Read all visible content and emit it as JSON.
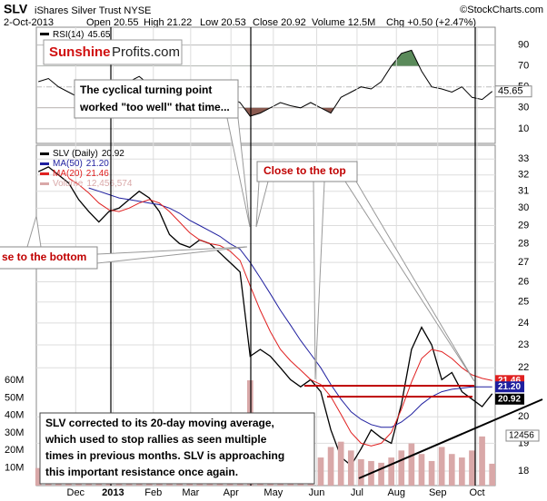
{
  "header": {
    "symbol": "SLV",
    "name": "iShares Silver Trust NYSE",
    "credit": "©StockCharts.com",
    "date": "2-Oct-2013",
    "quote": [
      "Open 20.55",
      "High 21.22",
      "Low 20.53",
      "Close 20.92",
      "Volume 12.5M",
      "Chg +0.50 (+2.47%)"
    ]
  },
  "logo": [
    "Sunshine",
    "Profits.com"
  ],
  "annotations": {
    "turning_point": [
      "The cyclical turning point",
      "worked \"too well\" that time..."
    ],
    "top": "Close to the top",
    "bottom": "se to the bottom",
    "comment": [
      "SLV corrected to its 20-day moving average,",
      "which used to stop rallies as seen multiple",
      "times in previous months. SLV is approaching",
      "this important resistance once again."
    ]
  },
  "chart_data": [
    {
      "type": "line",
      "xlim": [
        -0.2,
        45.3
      ],
      "ylim": [
        -4,
        107
      ],
      "yticks": [
        10,
        30,
        50,
        70,
        90
      ],
      "grid": true,
      "fill_above": 70,
      "fill_below": 30,
      "fill_above_color": "#5a8a5a",
      "fill_below_color": "#8a5a50",
      "series": [
        {
          "name": "RSI(14)",
          "legend_value": 45.65,
          "color": "#000000",
          "values": [
            55,
            58,
            50,
            45,
            40,
            38,
            35,
            42,
            50,
            55,
            60,
            52,
            45,
            38,
            40,
            42,
            45,
            48,
            44,
            40,
            35,
            22,
            25,
            30,
            35,
            32,
            30,
            35,
            30,
            25,
            40,
            45,
            50,
            48,
            55,
            70,
            82,
            85,
            65,
            50,
            48,
            45,
            50,
            40,
            38,
            45.65
          ]
        }
      ],
      "value_tag": 45.65
    },
    {
      "type": "line",
      "log_scale": true,
      "grid": true,
      "xlim": [
        -0.2,
        45.3
      ],
      "ylim": [
        17.5,
        33.9
      ],
      "yticks": [
        18,
        19,
        20,
        22,
        23,
        24,
        25,
        26,
        27,
        28,
        29,
        30,
        31,
        32,
        33
      ],
      "xticks": [
        {
          "value": 3.7,
          "label": "Dec"
        },
        {
          "value": 7.4,
          "label": "2013"
        },
        {
          "value": 11.4,
          "label": "Feb"
        },
        {
          "value": 15.1,
          "label": "Mar"
        },
        {
          "value": 19.1,
          "label": "Apr"
        },
        {
          "value": 23.3,
          "label": "May"
        },
        {
          "value": 27.6,
          "label": "Jun"
        },
        {
          "value": 31.6,
          "label": "Jul"
        },
        {
          "value": 35.5,
          "label": "Aug"
        },
        {
          "value": 39.6,
          "label": "Sep"
        },
        {
          "value": 43.5,
          "label": "Oct"
        }
      ],
      "y2lim": [
        0,
        194
      ],
      "y2ticks": [
        {
          "value": 10,
          "label": "10M"
        },
        {
          "value": 20,
          "label": "20M"
        },
        {
          "value": 30,
          "label": "30M"
        },
        {
          "value": 40,
          "label": "40M"
        },
        {
          "value": 50,
          "label": "50M"
        },
        {
          "value": 60,
          "label": "60M"
        }
      ],
      "series": [
        {
          "name": "SLV (Daily)",
          "legend_value": 20.92,
          "color": "#000000",
          "values": [
            32.2,
            32.5,
            32.0,
            31.5,
            30.5,
            29.8,
            29.2,
            29.8,
            30.0,
            30.5,
            31.0,
            30.6,
            29.8,
            28.5,
            28.0,
            27.8,
            28.2,
            28.0,
            27.5,
            27.0,
            26.5,
            22.5,
            22.8,
            22.5,
            22.0,
            21.5,
            21.2,
            21.5,
            21.0,
            19.5,
            18.5,
            18.2,
            18.8,
            19.5,
            19.2,
            19.0,
            20.5,
            22.8,
            23.8,
            23.0,
            21.5,
            21.8,
            21.0,
            20.7,
            20.4,
            20.92
          ]
        },
        {
          "name": "MA(50)",
          "legend_value": {
            "value": 21.2,
            "label": "21.20"
          },
          "color": "#1f1f9f",
          "values": [
            null,
            null,
            null,
            null,
            null,
            31.2,
            31.0,
            30.8,
            30.6,
            30.5,
            30.4,
            30.3,
            30.2,
            30.0,
            29.7,
            29.3,
            29.0,
            28.7,
            28.4,
            28.0,
            27.7,
            27.0,
            26.2,
            25.4,
            24.6,
            23.9,
            23.2,
            22.6,
            22.0,
            21.3,
            20.7,
            20.2,
            19.9,
            19.7,
            19.6,
            19.6,
            19.8,
            20.1,
            20.5,
            20.8,
            21.0,
            21.1,
            21.15,
            21.2,
            21.2,
            21.2
          ]
        },
        {
          "name": "MA(20)",
          "legend_value": 21.46,
          "color": "#e02020",
          "values": [
            null,
            null,
            null,
            31.8,
            31.4,
            30.9,
            30.3,
            29.9,
            29.8,
            30.0,
            30.3,
            30.5,
            30.3,
            29.8,
            29.2,
            28.6,
            28.2,
            28.0,
            27.9,
            27.6,
            27.1,
            25.8,
            24.6,
            23.6,
            22.8,
            22.3,
            21.9,
            21.5,
            21.3,
            20.8,
            20.1,
            19.4,
            19.0,
            18.9,
            19.0,
            19.4,
            20.3,
            21.4,
            22.4,
            22.8,
            22.7,
            22.4,
            22.0,
            21.7,
            21.55,
            21.46
          ]
        },
        {
          "name": "Volume",
          "legend_value": {
            "value": 12.456574,
            "label": "12,456,574"
          },
          "color": "#d9a8a8",
          "axis": "y2",
          "values": [
            10,
            9,
            11,
            12,
            14,
            10,
            9,
            8,
            9,
            11,
            10,
            9,
            12,
            13,
            11,
            10,
            9,
            10,
            12,
            14,
            18,
            60,
            35,
            20,
            15,
            14,
            13,
            18,
            16,
            22,
            25,
            20,
            15,
            14,
            13,
            16,
            20,
            24,
            18,
            14,
            22,
            18,
            16,
            20,
            28,
            12.456574
          ]
        }
      ],
      "value_tags": [
        {
          "value": 21.46,
          "color": "#e02020"
        },
        {
          "value": {
            "value": 21.2,
            "label": "21.20"
          },
          "color": "#1f1f9f"
        },
        {
          "value": 20.92,
          "color": "#000000"
        }
      ],
      "volume_tag": 12456
    }
  ]
}
